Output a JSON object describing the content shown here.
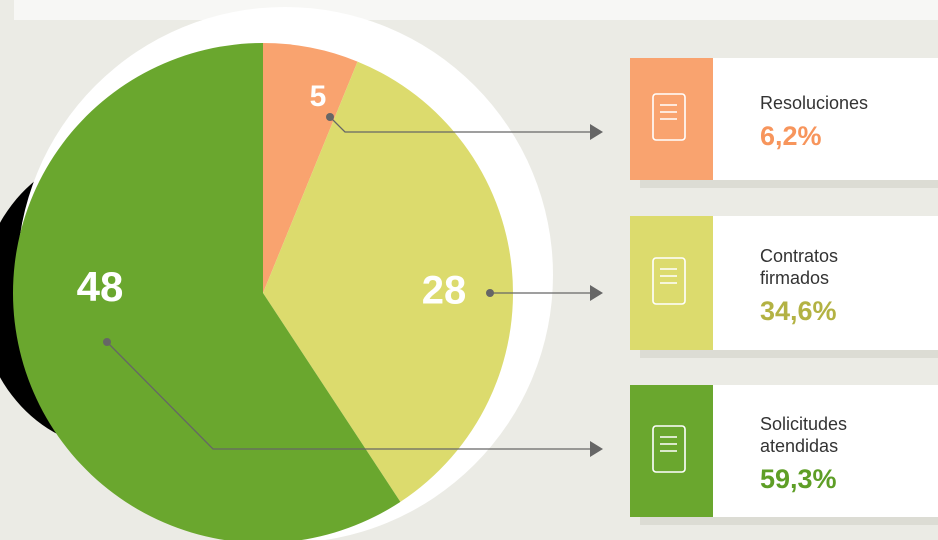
{
  "chart_data": {
    "type": "pie",
    "categories": [
      "Resoluciones",
      "Contratos firmados",
      "Solicitudes atendidas"
    ],
    "values": [
      5,
      28,
      48
    ],
    "colors": [
      "#f9a36f",
      "#dcdb6d",
      "#6aa72e"
    ],
    "label_colors": [
      "#f7955c",
      "#b3b243",
      "#5e9e26"
    ],
    "legend_values": [
      "6,2%",
      "34,6%",
      "59,3%"
    ]
  }
}
